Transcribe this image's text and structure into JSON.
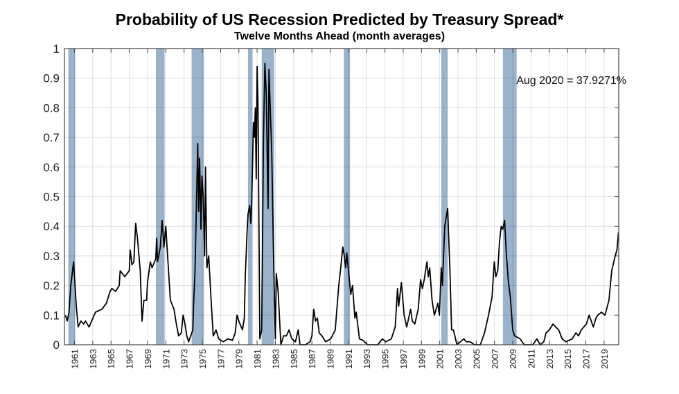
{
  "chart_data": {
    "type": "line",
    "title": "Probability of US Recession Predicted by Treasury Spread*",
    "subtitle": "Twelve Months Ahead (month averages)",
    "xlabel": "",
    "ylabel": "",
    "xlim": [
      1960,
      2020.6
    ],
    "ylim": [
      0,
      1
    ],
    "grid": true,
    "y_ticks": [
      "0",
      "0.1",
      "0.2",
      "0.3",
      "0.4",
      "0.5",
      "0.6",
      "0.7",
      "0.8",
      "0.9",
      "1"
    ],
    "x_ticks": [
      "1961",
      "1963",
      "1965",
      "1967",
      "1969",
      "1971",
      "1973",
      "1975",
      "1977",
      "1979",
      "1981",
      "1983",
      "1985",
      "1987",
      "1989",
      "1991",
      "1993",
      "1995",
      "1997",
      "1999",
      "2001",
      "2003",
      "2005",
      "2007",
      "2009",
      "2011",
      "2013",
      "2015",
      "2017",
      "2019"
    ],
    "annotation": "Aug 2020 = 37.9271%",
    "line_color": "#000000",
    "recession_color": "#9bb2cb",
    "recessions": [
      [
        1960.33,
        1961.08
      ],
      [
        1969.92,
        1970.87
      ],
      [
        1973.83,
        1975.17
      ],
      [
        1980.0,
        1980.5
      ],
      [
        1981.5,
        1982.87
      ],
      [
        1990.5,
        1991.17
      ],
      [
        2001.17,
        2001.87
      ],
      [
        2007.92,
        2009.42
      ]
    ],
    "series": [
      {
        "points": [
          [
            1960,
            0.1
          ],
          [
            1960.2,
            0.08
          ],
          [
            1960.4,
            0.11
          ],
          [
            1960.6,
            0.2
          ],
          [
            1960.9,
            0.28
          ],
          [
            1961.2,
            0.13
          ],
          [
            1961.4,
            0.06
          ],
          [
            1961.7,
            0.08
          ],
          [
            1962.0,
            0.07
          ],
          [
            1962.2,
            0.08
          ],
          [
            1962.6,
            0.06
          ],
          [
            1963.3,
            0.11
          ],
          [
            1964.0,
            0.12
          ],
          [
            1964.5,
            0.14
          ],
          [
            1964.9,
            0.18
          ],
          [
            1965.1,
            0.19
          ],
          [
            1965.5,
            0.18
          ],
          [
            1965.9,
            0.2
          ],
          [
            1966.0,
            0.25
          ],
          [
            1966.5,
            0.23
          ],
          [
            1967.0,
            0.25
          ],
          [
            1967.1,
            0.32
          ],
          [
            1967.3,
            0.27
          ],
          [
            1967.5,
            0.28
          ],
          [
            1967.7,
            0.41
          ],
          [
            1967.9,
            0.36
          ],
          [
            1968.2,
            0.25
          ],
          [
            1968.4,
            0.08
          ],
          [
            1968.6,
            0.15
          ],
          [
            1968.9,
            0.15
          ],
          [
            1969.0,
            0.21
          ],
          [
            1969.3,
            0.28
          ],
          [
            1969.5,
            0.26
          ],
          [
            1969.9,
            0.29
          ],
          [
            1970.0,
            0.36
          ],
          [
            1970.1,
            0.28
          ],
          [
            1970.4,
            0.33
          ],
          [
            1970.6,
            0.42
          ],
          [
            1970.8,
            0.33
          ],
          [
            1971.0,
            0.4
          ],
          [
            1971.2,
            0.3
          ],
          [
            1971.5,
            0.15
          ],
          [
            1971.9,
            0.12
          ],
          [
            1972.1,
            0.08
          ],
          [
            1972.4,
            0.03
          ],
          [
            1972.7,
            0.04
          ],
          [
            1972.9,
            0.1
          ],
          [
            1973.1,
            0.07
          ],
          [
            1973.3,
            0.03
          ],
          [
            1973.5,
            0.01
          ],
          [
            1973.96,
            0.05
          ],
          [
            1974.05,
            0.14
          ],
          [
            1974.2,
            0.25
          ],
          [
            1974.5,
            0.68
          ],
          [
            1974.6,
            0.45
          ],
          [
            1974.7,
            0.63
          ],
          [
            1974.85,
            0.39
          ],
          [
            1974.95,
            0.57
          ],
          [
            1975.1,
            0.5
          ],
          [
            1975.25,
            0.3
          ],
          [
            1975.35,
            0.6
          ],
          [
            1975.5,
            0.26
          ],
          [
            1975.7,
            0.3
          ],
          [
            1976.0,
            0.13
          ],
          [
            1976.2,
            0.03
          ],
          [
            1976.5,
            0.05
          ],
          [
            1976.8,
            0.02
          ],
          [
            1977.3,
            0.01
          ],
          [
            1977.8,
            0.02
          ],
          [
            1978.3,
            0.015
          ],
          [
            1978.6,
            0.04
          ],
          [
            1978.8,
            0.1
          ],
          [
            1979.0,
            0.08
          ],
          [
            1979.4,
            0.05
          ],
          [
            1979.6,
            0.09
          ],
          [
            1979.7,
            0.23
          ],
          [
            1979.9,
            0.38
          ],
          [
            1980.0,
            0.44
          ],
          [
            1980.2,
            0.47
          ],
          [
            1980.3,
            0.41
          ],
          [
            1980.4,
            0.47
          ],
          [
            1980.6,
            0.75
          ],
          [
            1980.7,
            0.7
          ],
          [
            1980.8,
            0.8
          ],
          [
            1980.9,
            0.56
          ],
          [
            1981.0,
            0.94
          ],
          [
            1981.1,
            0.8
          ],
          [
            1981.3,
            0.02
          ],
          [
            1981.5,
            0.05
          ],
          [
            1981.7,
            0.7
          ],
          [
            1981.85,
            0.95
          ],
          [
            1982.0,
            0.85
          ],
          [
            1982.2,
            0.46
          ],
          [
            1982.3,
            0.93
          ],
          [
            1982.6,
            0.65
          ],
          [
            1982.8,
            0.3
          ],
          [
            1983.0,
            0.02
          ],
          [
            1983.1,
            0.24
          ],
          [
            1983.3,
            0.18
          ],
          [
            1983.6,
            0
          ],
          [
            1983.9,
            0.03
          ],
          [
            1984.2,
            0.03
          ],
          [
            1984.5,
            0.05
          ],
          [
            1984.8,
            0.02
          ],
          [
            1985.2,
            0.01
          ],
          [
            1985.5,
            0.05
          ],
          [
            1985.7,
            0
          ],
          [
            1986.3,
            0
          ],
          [
            1986.8,
            0.01
          ],
          [
            1987.0,
            0.03
          ],
          [
            1987.2,
            0.12
          ],
          [
            1987.4,
            0.08
          ],
          [
            1987.6,
            0.09
          ],
          [
            1987.8,
            0.04
          ],
          [
            1988.1,
            0.03
          ],
          [
            1988.5,
            0.01
          ],
          [
            1989.06,
            0.02
          ],
          [
            1989.56,
            0.05
          ],
          [
            1989.94,
            0.2
          ],
          [
            1990.12,
            0.25
          ],
          [
            1990.39,
            0.33
          ],
          [
            1990.55,
            0.3
          ],
          [
            1990.7,
            0.26
          ],
          [
            1990.82,
            0.31
          ],
          [
            1991.13,
            0.21
          ],
          [
            1991.25,
            0.17
          ],
          [
            1991.45,
            0.2
          ],
          [
            1991.71,
            0.09
          ],
          [
            1991.85,
            0.11
          ],
          [
            1992.21,
            0.02
          ],
          [
            1992.6,
            0.015
          ],
          [
            1993.09,
            0
          ],
          [
            1994.2,
            0
          ],
          [
            1994.73,
            0.02
          ],
          [
            1995.1,
            0.01
          ],
          [
            1995.7,
            0.02
          ],
          [
            1996.12,
            0.06
          ],
          [
            1996.37,
            0.19
          ],
          [
            1996.5,
            0.13
          ],
          [
            1996.8,
            0.21
          ],
          [
            1997.1,
            0.1
          ],
          [
            1997.38,
            0.06
          ],
          [
            1997.81,
            0.12
          ],
          [
            1998.0,
            0.08
          ],
          [
            1998.27,
            0.07
          ],
          [
            1998.64,
            0.12
          ],
          [
            1998.9,
            0.22
          ],
          [
            1999.1,
            0.19
          ],
          [
            1999.3,
            0.22
          ],
          [
            1999.6,
            0.28
          ],
          [
            1999.75,
            0.23
          ],
          [
            1999.9,
            0.26
          ],
          [
            2000.16,
            0.15
          ],
          [
            2000.41,
            0.1
          ],
          [
            2000.79,
            0.14
          ],
          [
            2000.96,
            0.1
          ],
          [
            2001.17,
            0.26
          ],
          [
            2001.29,
            0.2
          ],
          [
            2001.55,
            0.4
          ],
          [
            2001.87,
            0.46
          ],
          [
            2002.12,
            0.25
          ],
          [
            2002.3,
            0.05
          ],
          [
            2002.5,
            0.05
          ],
          [
            2002.88,
            0
          ],
          [
            2003.64,
            0.02
          ],
          [
            2003.9,
            0.01
          ],
          [
            2004.32,
            0.01
          ],
          [
            2004.8,
            0
          ],
          [
            2005.45,
            0
          ],
          [
            2005.9,
            0.04
          ],
          [
            2006.34,
            0.1
          ],
          [
            2006.72,
            0.16
          ],
          [
            2006.97,
            0.28
          ],
          [
            2007.15,
            0.23
          ],
          [
            2007.35,
            0.25
          ],
          [
            2007.55,
            0.35
          ],
          [
            2007.73,
            0.4
          ],
          [
            2007.9,
            0.39
          ],
          [
            2008.1,
            0.42
          ],
          [
            2008.3,
            0.3
          ],
          [
            2008.36,
            0.28
          ],
          [
            2008.5,
            0.22
          ],
          [
            2008.73,
            0.16
          ],
          [
            2008.99,
            0.05
          ],
          [
            2009.2,
            0.03
          ],
          [
            2009.8,
            0.02
          ],
          [
            2010.25,
            0
          ],
          [
            2011.2,
            0
          ],
          [
            2011.64,
            0.02
          ],
          [
            2012.0,
            0
          ],
          [
            2012.4,
            0.01
          ],
          [
            2012.64,
            0.04
          ],
          [
            2013.0,
            0.05
          ],
          [
            2013.4,
            0.07
          ],
          [
            2013.7,
            0.06
          ],
          [
            2014.03,
            0.05
          ],
          [
            2014.4,
            0.02
          ],
          [
            2014.8,
            0.01
          ],
          [
            2015.5,
            0.02
          ],
          [
            2015.92,
            0.04
          ],
          [
            2016.2,
            0.03
          ],
          [
            2016.5,
            0.05
          ],
          [
            2017.06,
            0.07
          ],
          [
            2017.36,
            0.1
          ],
          [
            2017.82,
            0.06
          ],
          [
            2018.1,
            0.09
          ],
          [
            2018.32,
            0.1
          ],
          [
            2018.7,
            0.11
          ],
          [
            2019.1,
            0.1
          ],
          [
            2019.53,
            0.15
          ],
          [
            2019.83,
            0.25
          ],
          [
            2020.21,
            0.3
          ],
          [
            2020.4,
            0.32
          ],
          [
            2020.58,
            0.379
          ]
        ]
      }
    ]
  }
}
